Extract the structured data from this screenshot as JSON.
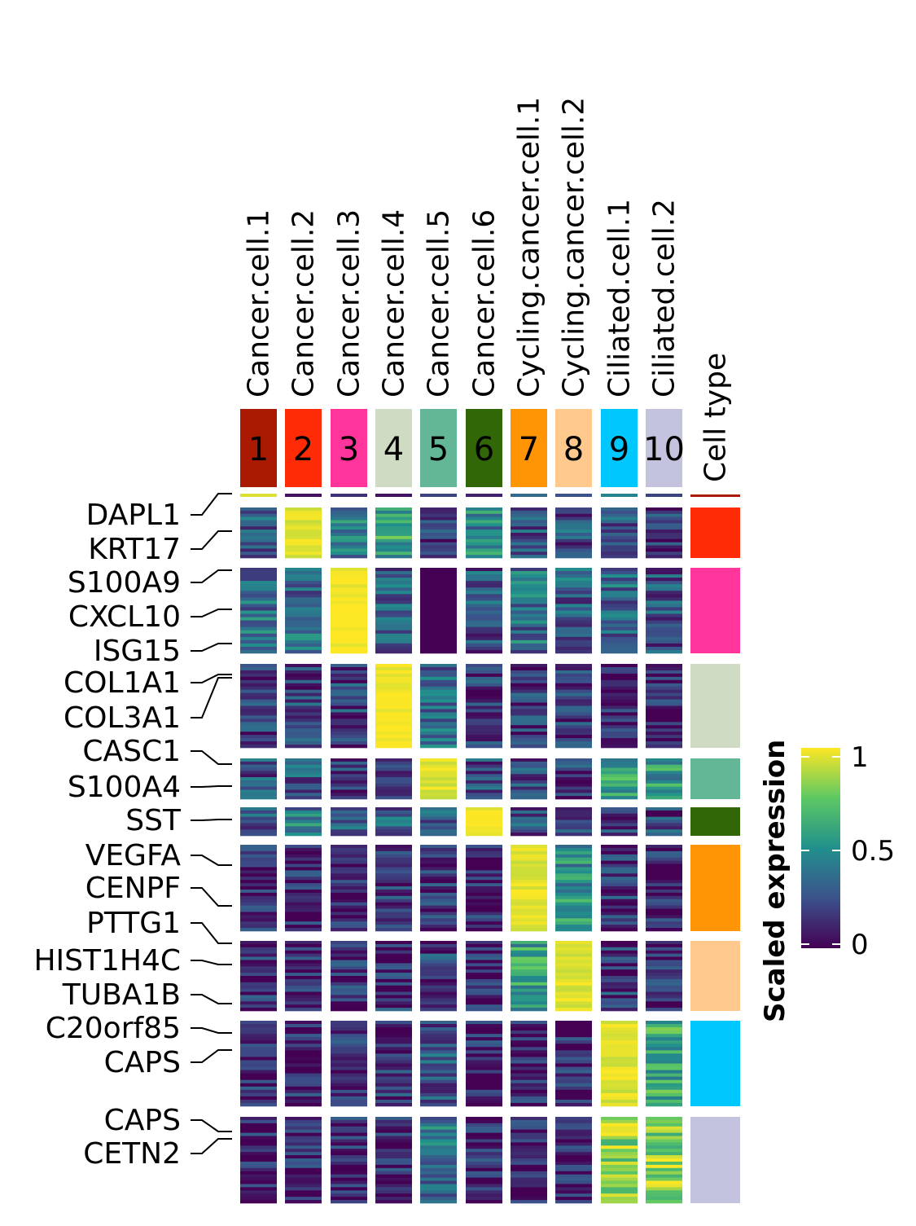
{
  "chart_data": {
    "type": "heatmap",
    "title": "",
    "columns": [
      {
        "name": "Cancer.cell.1",
        "number": "1",
        "color": "#AA1A02"
      },
      {
        "name": "Cancer.cell.2",
        "number": "2",
        "color": "#FF2A06"
      },
      {
        "name": "Cancer.cell.3",
        "number": "3",
        "color": "#FF359C"
      },
      {
        "name": "Cancer.cell.4",
        "number": "4",
        "color": "#CFDCC3"
      },
      {
        "name": "Cancer.cell.5",
        "number": "5",
        "color": "#64B796"
      },
      {
        "name": "Cancer.cell.6",
        "number": "6",
        "color": "#326707"
      },
      {
        "name": "Cycling.cancer.cell.1",
        "number": "7",
        "color": "#FF9505"
      },
      {
        "name": "Cycling.cancer.cell.2",
        "number": "8",
        "color": "#FFC88D"
      },
      {
        "name": "Ciliated.cell.1",
        "number": "9",
        "color": "#00C8FF"
      },
      {
        "name": "Ciliated.cell.2",
        "number": "10",
        "color": "#C3C3DF"
      }
    ],
    "annotation_label": "Cell type",
    "gene_labels": [
      "DAPL1",
      "KRT17",
      "S100A9",
      "CXCL10",
      "ISG15",
      "COL1A1",
      "COL3A1",
      "CASC1",
      "S100A4",
      "SST",
      "VEGFA",
      "CENPF",
      "PTTG1",
      "HIST1H4C",
      "TUBA1B",
      "C20orf85",
      "CAPS",
      "CAPS",
      "CETN2"
    ],
    "row_groups": [
      {
        "cell_type": "Cancer.cell.1",
        "color": "#AA1A02",
        "mean_expression": [
          0.95,
          0.05,
          0.15,
          0.05,
          0.2,
          0.1,
          0.35,
          0.25,
          0.45,
          0.2
        ]
      },
      {
        "cell_type": "Cancer.cell.2",
        "color": "#FF2A06",
        "mean_expression": [
          0.25,
          0.95,
          0.4,
          0.6,
          0.2,
          0.45,
          0.25,
          0.25,
          0.25,
          0.15
        ]
      },
      {
        "cell_type": "Cancer.cell.3",
        "color": "#FF359C",
        "mean_expression": [
          0.35,
          0.35,
          1.0,
          0.3,
          0.0,
          0.25,
          0.35,
          0.3,
          0.35,
          0.25
        ]
      },
      {
        "cell_type": "Cancer.cell.4",
        "color": "#CFDCC3",
        "mean_expression": [
          0.15,
          0.2,
          0.2,
          1.0,
          0.35,
          0.15,
          0.15,
          0.15,
          0.1,
          0.1
        ]
      },
      {
        "cell_type": "Cancer.cell.5",
        "color": "#64B796",
        "mean_expression": [
          0.25,
          0.3,
          0.2,
          0.2,
          0.95,
          0.25,
          0.25,
          0.2,
          0.6,
          0.55
        ]
      },
      {
        "cell_type": "Cancer.cell.6",
        "color": "#326707",
        "mean_expression": [
          0.25,
          0.4,
          0.3,
          0.3,
          0.25,
          1.0,
          0.25,
          0.25,
          0.2,
          0.2
        ]
      },
      {
        "cell_type": "Cycling.cancer.cell.1",
        "color": "#FF9505",
        "mean_expression": [
          0.1,
          0.1,
          0.1,
          0.15,
          0.15,
          0.1,
          0.95,
          0.5,
          0.15,
          0.1
        ]
      },
      {
        "cell_type": "Cycling.cancer.cell.2",
        "color": "#FFC88D",
        "mean_expression": [
          0.15,
          0.1,
          0.15,
          0.15,
          0.2,
          0.1,
          0.55,
          0.95,
          0.15,
          0.15
        ]
      },
      {
        "cell_type": "Ciliated.cell.1",
        "color": "#00C8FF",
        "mean_expression": [
          0.1,
          0.1,
          0.1,
          0.15,
          0.25,
          0.1,
          0.1,
          0.1,
          0.95,
          0.6
        ]
      },
      {
        "cell_type": "Ciliated.cell.2",
        "color": "#C3C3DF",
        "mean_expression": [
          0.1,
          0.1,
          0.1,
          0.1,
          0.4,
          0.1,
          0.1,
          0.1,
          0.85,
          0.8
        ]
      }
    ],
    "colorbar": {
      "title": "Scaled expression",
      "ticks": [
        "1",
        "0.5",
        "0"
      ],
      "range": [
        0,
        1
      ],
      "colormap": "viridis"
    }
  }
}
